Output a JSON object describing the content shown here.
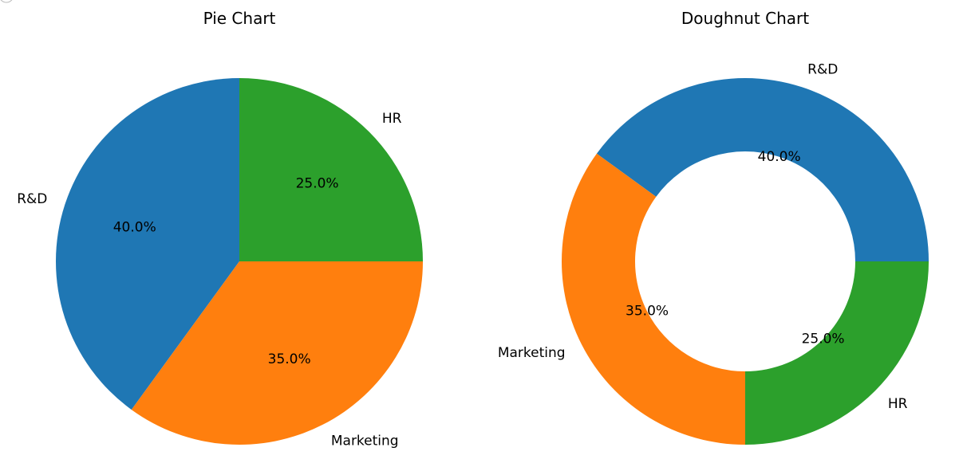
{
  "chart_data": [
    {
      "type": "pie",
      "title": "Pie Chart",
      "categories": [
        "R&D",
        "Marketing",
        "HR"
      ],
      "values": [
        40,
        35,
        25
      ],
      "percent_labels": [
        "40.0%",
        "35.0%",
        "25.0%"
      ],
      "colors": [
        "#1f77b4",
        "#ff7f0e",
        "#2ca02c"
      ],
      "start_angle_deg": 90,
      "direction": "counterclockwise",
      "hole_fraction": 0
    },
    {
      "type": "pie",
      "title": "Doughnut Chart",
      "categories": [
        "R&D",
        "Marketing",
        "HR"
      ],
      "values": [
        40,
        35,
        25
      ],
      "percent_labels": [
        "40.0%",
        "35.0%",
        "25.0%"
      ],
      "colors": [
        "#1f77b4",
        "#ff7f0e",
        "#2ca02c"
      ],
      "start_angle_deg": 0,
      "direction": "counterclockwise",
      "hole_fraction": 0.6
    }
  ]
}
